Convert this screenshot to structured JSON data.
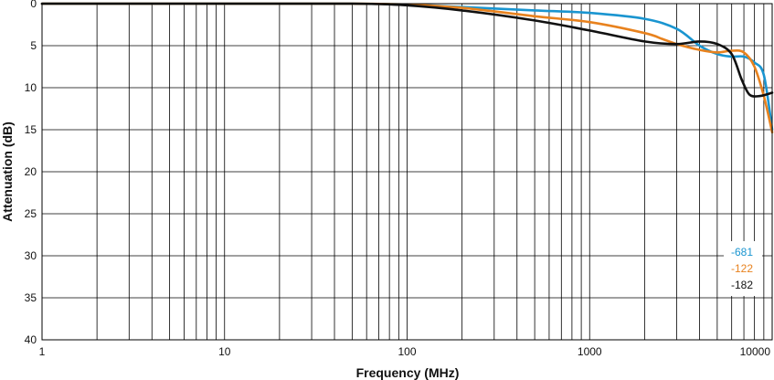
{
  "chart_data": {
    "type": "line",
    "title": "",
    "xlabel": "Frequency (MHz)",
    "ylabel": "Attenuation (dB)",
    "x_scale": "log",
    "xlim": [
      1,
      10000
    ],
    "ylim": [
      0,
      40
    ],
    "y_inverted": true,
    "grid": true,
    "legend_position": "bottom-right",
    "x_tick_labels": [
      "1",
      "10",
      "100",
      "1000",
      "10000"
    ],
    "x_tick_values": [
      1,
      10,
      100,
      1000,
      10000
    ],
    "y_tick_values": [
      0,
      5,
      10,
      15,
      20,
      25,
      30,
      35,
      40
    ],
    "series": [
      {
        "name": "-681",
        "color": "#1a95d0",
        "points": [
          [
            1,
            0
          ],
          [
            10,
            0
          ],
          [
            50,
            0
          ],
          [
            100,
            0.1
          ],
          [
            200,
            0.4
          ],
          [
            500,
            0.8
          ],
          [
            1000,
            1.1
          ],
          [
            2000,
            1.8
          ],
          [
            3000,
            3.0
          ],
          [
            4000,
            5.0
          ],
          [
            5000,
            6.0
          ],
          [
            6000,
            6.3
          ],
          [
            7000,
            6.3
          ],
          [
            8000,
            7.0
          ],
          [
            9000,
            8.5
          ],
          [
            10000,
            15.0
          ]
        ]
      },
      {
        "name": "-122",
        "color": "#e8821e",
        "points": [
          [
            1,
            0
          ],
          [
            10,
            0
          ],
          [
            50,
            0
          ],
          [
            100,
            0.1
          ],
          [
            200,
            0.5
          ],
          [
            500,
            1.5
          ],
          [
            1000,
            2.2
          ],
          [
            2000,
            3.5
          ],
          [
            2500,
            4.2
          ],
          [
            3000,
            4.8
          ],
          [
            4000,
            5.5
          ],
          [
            5000,
            5.8
          ],
          [
            6000,
            5.6
          ],
          [
            7000,
            5.8
          ],
          [
            8000,
            7.5
          ],
          [
            9000,
            11.0
          ],
          [
            10000,
            15.3
          ]
        ]
      },
      {
        "name": "-182",
        "color": "#111111",
        "points": [
          [
            1,
            0
          ],
          [
            10,
            0
          ],
          [
            50,
            0
          ],
          [
            100,
            0.2
          ],
          [
            200,
            0.8
          ],
          [
            500,
            2.0
          ],
          [
            1000,
            3.2
          ],
          [
            2000,
            4.5
          ],
          [
            3000,
            4.8
          ],
          [
            4000,
            4.5
          ],
          [
            5000,
            4.8
          ],
          [
            6000,
            6.0
          ],
          [
            6800,
            9.0
          ],
          [
            7500,
            10.8
          ],
          [
            8500,
            11.0
          ],
          [
            10000,
            10.6
          ]
        ]
      }
    ]
  }
}
